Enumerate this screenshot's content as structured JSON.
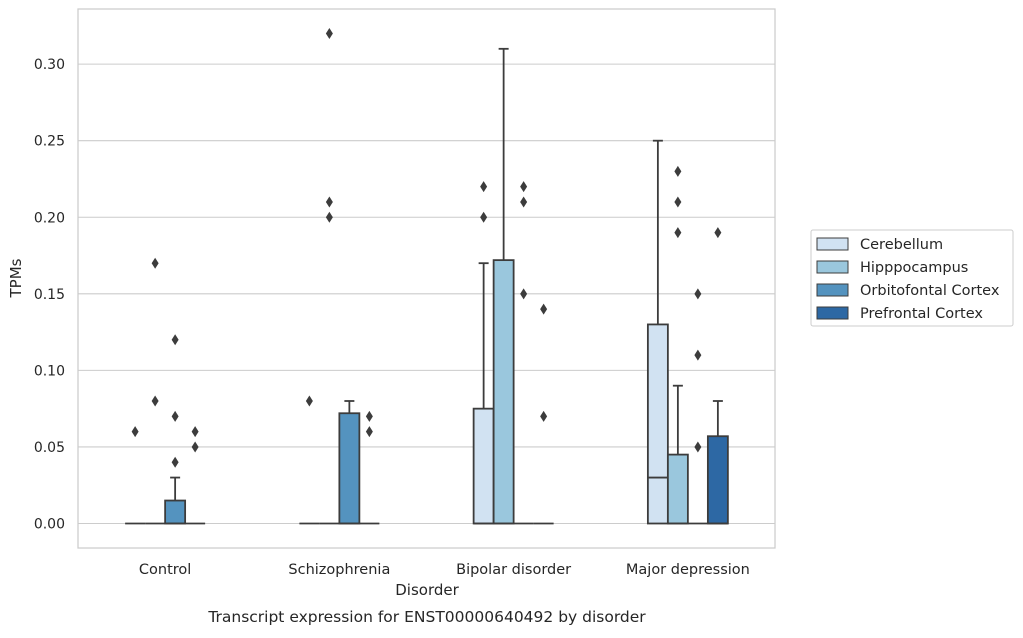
{
  "chart_data": {
    "type": "box",
    "title": "",
    "caption": "Transcript expression for ENST00000640492 by disorder",
    "xlabel": "Disorder",
    "ylabel": "TPMs",
    "ylim": [
      -0.016,
      0.336
    ],
    "yticks": [
      "0.00",
      "0.05",
      "0.10",
      "0.15",
      "0.20",
      "0.25",
      "0.30"
    ],
    "ytick_values": [
      0,
      0.05,
      0.1,
      0.15,
      0.2,
      0.25,
      0.3
    ],
    "grid": true,
    "legend_position": "right",
    "categories": [
      "Control",
      "Schizophrenia",
      "Bipolar disorder",
      "Major depression"
    ],
    "series": [
      {
        "name": "Cerebellum",
        "color": "#d1e2f2",
        "boxes": [
          {
            "q1": 0,
            "median": 0,
            "q3": 0,
            "whisker_low": 0,
            "whisker_high": 0,
            "outliers": [
              0.06
            ]
          },
          {
            "q1": 0,
            "median": 0,
            "q3": 0,
            "whisker_low": 0,
            "whisker_high": 0,
            "outliers": [
              0.08
            ]
          },
          {
            "q1": 0,
            "median": 0,
            "q3": 0.075,
            "whisker_low": 0,
            "whisker_high": 0.17,
            "outliers": [
              0.2,
              0.22
            ]
          },
          {
            "q1": 0,
            "median": 0.03,
            "q3": 0.13,
            "whisker_low": 0,
            "whisker_high": 0.25,
            "outliers": []
          }
        ]
      },
      {
        "name": "Hipppocampus",
        "color": "#9ac7dd",
        "boxes": [
          {
            "q1": 0,
            "median": 0,
            "q3": 0,
            "whisker_low": 0,
            "whisker_high": 0,
            "outliers": [
              0.08,
              0.17
            ]
          },
          {
            "q1": 0,
            "median": 0,
            "q3": 0,
            "whisker_low": 0,
            "whisker_high": 0,
            "outliers": [
              0.2,
              0.21,
              0.32
            ]
          },
          {
            "q1": 0,
            "median": 0,
            "q3": 0.172,
            "whisker_low": 0,
            "whisker_high": 0.31,
            "outliers": []
          },
          {
            "q1": 0,
            "median": 0,
            "q3": 0.045,
            "whisker_low": 0,
            "whisker_high": 0.09,
            "outliers": [
              0.19,
              0.21,
              0.23
            ]
          }
        ]
      },
      {
        "name": "Orbitofontal Cortex",
        "color": "#5493bf",
        "boxes": [
          {
            "q1": 0,
            "median": 0,
            "q3": 0.015,
            "whisker_low": 0,
            "whisker_high": 0.03,
            "outliers": [
              0.04,
              0.07,
              0.12
            ]
          },
          {
            "q1": 0,
            "median": 0,
            "q3": 0.072,
            "whisker_low": 0,
            "whisker_high": 0.08,
            "outliers": []
          },
          {
            "q1": 0,
            "median": 0,
            "q3": 0,
            "whisker_low": 0,
            "whisker_high": 0,
            "outliers": [
              0.15,
              0.21,
              0.22
            ]
          },
          {
            "q1": 0,
            "median": 0,
            "q3": 0,
            "whisker_low": 0,
            "whisker_high": 0,
            "outliers": [
              0.05,
              0.11,
              0.15
            ]
          }
        ]
      },
      {
        "name": "Prefrontal Cortex",
        "color": "#2d68a4",
        "boxes": [
          {
            "q1": 0,
            "median": 0,
            "q3": 0,
            "whisker_low": 0,
            "whisker_high": 0,
            "outliers": [
              0.05,
              0.06
            ]
          },
          {
            "q1": 0,
            "median": 0,
            "q3": 0,
            "whisker_low": 0,
            "whisker_high": 0,
            "outliers": [
              0.06,
              0.07
            ]
          },
          {
            "q1": 0,
            "median": 0,
            "q3": 0,
            "whisker_low": 0,
            "whisker_high": 0,
            "outliers": [
              0.07,
              0.14
            ]
          },
          {
            "q1": 0,
            "median": 0,
            "q3": 0.057,
            "whisker_low": 0,
            "whisker_high": 0.08,
            "outliers": [
              0.19
            ]
          }
        ]
      }
    ]
  }
}
